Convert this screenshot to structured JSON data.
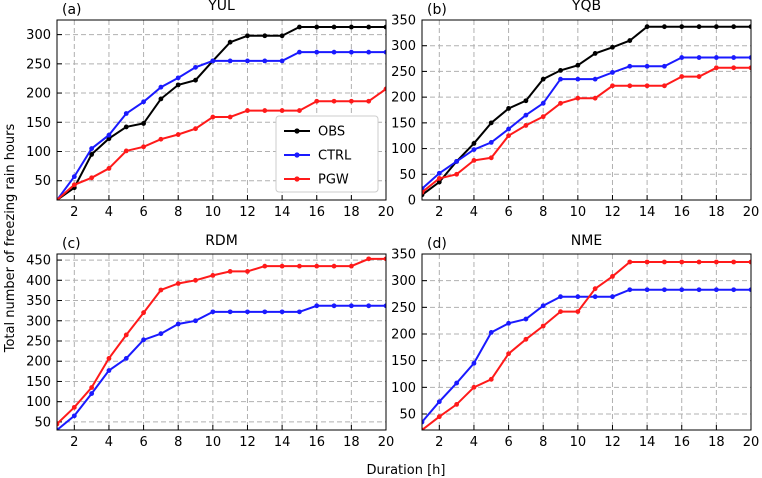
{
  "figure": {
    "ylabel": "Total number of freezing rain hours",
    "xlabel": "Duration [h]"
  },
  "legend": [
    {
      "name": "OBS",
      "color": "#000000"
    },
    {
      "name": "CTRL",
      "color": "#1a1aff"
    },
    {
      "name": "PGW",
      "color": "#ff1a1a"
    }
  ],
  "chart_data": [
    {
      "type": "line",
      "panel_label": "(a)",
      "title": "YUL",
      "x": [
        1,
        2,
        3,
        4,
        5,
        6,
        7,
        8,
        9,
        10,
        11,
        12,
        13,
        14,
        15,
        16,
        17,
        18,
        19,
        20
      ],
      "xlim": [
        1,
        20
      ],
      "xticks": [
        "2",
        "4",
        "6",
        "8",
        "10",
        "12",
        "14",
        "16",
        "18",
        "20"
      ],
      "ylim": [
        17,
        325
      ],
      "yticks": [
        "50",
        "100",
        "150",
        "200",
        "250",
        "300"
      ],
      "series": [
        {
          "name": "OBS",
          "color": "#000000",
          "values": [
            17,
            38,
            95,
            122,
            142,
            148,
            190,
            214,
            222,
            255,
            287,
            298,
            298,
            298,
            313,
            313,
            313,
            313,
            313,
            313
          ]
        },
        {
          "name": "CTRL",
          "color": "#1a1aff",
          "values": [
            17,
            57,
            105,
            128,
            165,
            185,
            210,
            226,
            244,
            255,
            255,
            255,
            255,
            255,
            270,
            270,
            270,
            270,
            270,
            270
          ]
        },
        {
          "name": "PGW",
          "color": "#ff1a1a",
          "values": [
            17,
            43,
            55,
            71,
            101,
            108,
            121,
            129,
            139,
            159,
            159,
            170,
            170,
            170,
            170,
            186,
            186,
            186,
            186,
            207
          ]
        }
      ]
    },
    {
      "type": "line",
      "panel_label": "(b)",
      "title": "YQB",
      "x": [
        1,
        2,
        3,
        4,
        5,
        6,
        7,
        8,
        9,
        10,
        11,
        12,
        13,
        14,
        15,
        16,
        17,
        18,
        19,
        20
      ],
      "xlim": [
        1,
        20
      ],
      "xticks": [
        "2",
        "4",
        "6",
        "8",
        "10",
        "12",
        "14",
        "16",
        "18",
        "20"
      ],
      "ylim": [
        0,
        350
      ],
      "yticks": [
        "0",
        "50",
        "100",
        "150",
        "200",
        "250",
        "300",
        "350"
      ],
      "series": [
        {
          "name": "OBS",
          "color": "#000000",
          "values": [
            10,
            35,
            75,
            110,
            150,
            178,
            193,
            235,
            252,
            262,
            285,
            297,
            310,
            337,
            337,
            337,
            337,
            337,
            337,
            337
          ]
        },
        {
          "name": "CTRL",
          "color": "#1a1aff",
          "values": [
            22,
            52,
            75,
            98,
            112,
            138,
            165,
            188,
            235,
            235,
            235,
            248,
            260,
            260,
            260,
            277,
            277,
            277,
            277,
            277
          ]
        },
        {
          "name": "PGW",
          "color": "#ff1a1a",
          "values": [
            15,
            42,
            50,
            77,
            82,
            125,
            145,
            162,
            188,
            198,
            198,
            222,
            222,
            222,
            222,
            240,
            240,
            257,
            257,
            257
          ]
        }
      ]
    },
    {
      "type": "line",
      "panel_label": "(c)",
      "title": "RDM",
      "x": [
        1,
        2,
        3,
        4,
        5,
        6,
        7,
        8,
        9,
        10,
        11,
        12,
        13,
        14,
        15,
        16,
        17,
        18,
        19,
        20
      ],
      "xlim": [
        1,
        20
      ],
      "xticks": [
        "2",
        "4",
        "6",
        "8",
        "10",
        "12",
        "14",
        "16",
        "18",
        "20"
      ],
      "ylim": [
        30,
        465
      ],
      "yticks": [
        "50",
        "100",
        "150",
        "200",
        "250",
        "300",
        "350",
        "400",
        "450"
      ],
      "series": [
        {
          "name": "CTRL",
          "color": "#1a1aff",
          "values": [
            30,
            65,
            120,
            177,
            207,
            253,
            268,
            292,
            300,
            322,
            322,
            322,
            322,
            322,
            322,
            337,
            337,
            337,
            337,
            337
          ]
        },
        {
          "name": "PGW",
          "color": "#ff1a1a",
          "values": [
            45,
            86,
            135,
            207,
            265,
            320,
            376,
            392,
            400,
            412,
            422,
            422,
            435,
            435,
            435,
            435,
            435,
            435,
            453,
            453
          ]
        }
      ]
    },
    {
      "type": "line",
      "panel_label": "(d)",
      "title": "NME",
      "x": [
        1,
        2,
        3,
        4,
        5,
        6,
        7,
        8,
        9,
        10,
        11,
        12,
        13,
        14,
        15,
        16,
        17,
        18,
        19,
        20
      ],
      "xlim": [
        1,
        20
      ],
      "xticks": [
        "2",
        "4",
        "6",
        "8",
        "10",
        "12",
        "14",
        "16",
        "18",
        "20"
      ],
      "ylim": [
        20,
        350
      ],
      "yticks": [
        "50",
        "100",
        "150",
        "200",
        "250",
        "300",
        "350"
      ],
      "series": [
        {
          "name": "CTRL",
          "color": "#1a1aff",
          "values": [
            35,
            73,
            108,
            145,
            203,
            220,
            228,
            253,
            270,
            270,
            270,
            270,
            283,
            283,
            283,
            283,
            283,
            283,
            283,
            283
          ]
        },
        {
          "name": "PGW",
          "color": "#ff1a1a",
          "values": [
            20,
            45,
            68,
            100,
            115,
            163,
            190,
            215,
            242,
            242,
            285,
            308,
            335,
            335,
            335,
            335,
            335,
            335,
            335,
            335
          ]
        }
      ]
    }
  ]
}
